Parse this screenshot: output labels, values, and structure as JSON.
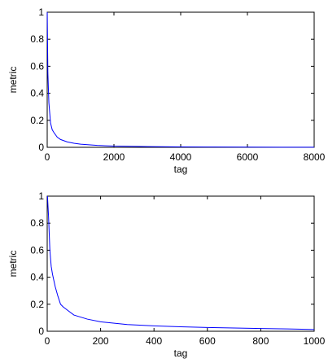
{
  "chart_data": [
    {
      "type": "line",
      "xlabel": "tag",
      "ylabel": "metric",
      "xlim": [
        0,
        8000
      ],
      "ylim": [
        0,
        1
      ],
      "xticks": [
        0,
        2000,
        4000,
        6000,
        8000
      ],
      "yticks": [
        0,
        0.2,
        0.4,
        0.6,
        0.8,
        1
      ],
      "xtick_labels": [
        "0",
        "2000",
        "4000",
        "6000",
        "8000"
      ],
      "ytick_labels": [
        "0",
        "0.2",
        "0.4",
        "0.6",
        "0.8",
        "1"
      ],
      "grid": false,
      "series": [
        {
          "color": "#0000ff",
          "x": [
            1,
            20,
            50,
            100,
            150,
            200,
            300,
            400,
            600,
            800,
            1000,
            1500,
            2000,
            3000,
            4000,
            5000,
            6000,
            7000,
            8000
          ],
          "y": [
            1.0,
            0.55,
            0.33,
            0.18,
            0.13,
            0.11,
            0.075,
            0.058,
            0.04,
            0.03,
            0.023,
            0.014,
            0.009,
            0.005,
            0.003,
            0.002,
            0.0015,
            0.001,
            0.0008
          ]
        }
      ]
    },
    {
      "type": "line",
      "xlabel": "tag",
      "ylabel": "metric",
      "xlim": [
        0,
        1000
      ],
      "ylim": [
        0,
        1
      ],
      "xticks": [
        0,
        200,
        400,
        600,
        800,
        1000
      ],
      "yticks": [
        0,
        0.2,
        0.4,
        0.6,
        0.8,
        1
      ],
      "xtick_labels": [
        "0",
        "200",
        "400",
        "600",
        "800",
        "1000"
      ],
      "ytick_labels": [
        "0",
        "0.2",
        "0.4",
        "0.6",
        "0.8",
        "1"
      ],
      "grid": false,
      "series": [
        {
          "color": "#0000ff",
          "x": [
            1,
            5,
            10,
            15,
            20,
            30,
            40,
            50,
            60,
            80,
            100,
            150,
            200,
            300,
            400,
            500,
            600,
            700,
            800,
            900,
            1000
          ],
          "y": [
            1.0,
            0.85,
            0.6,
            0.48,
            0.42,
            0.33,
            0.26,
            0.2,
            0.18,
            0.15,
            0.12,
            0.09,
            0.07,
            0.05,
            0.04,
            0.033,
            0.028,
            0.024,
            0.02,
            0.017,
            0.013
          ]
        }
      ]
    }
  ]
}
